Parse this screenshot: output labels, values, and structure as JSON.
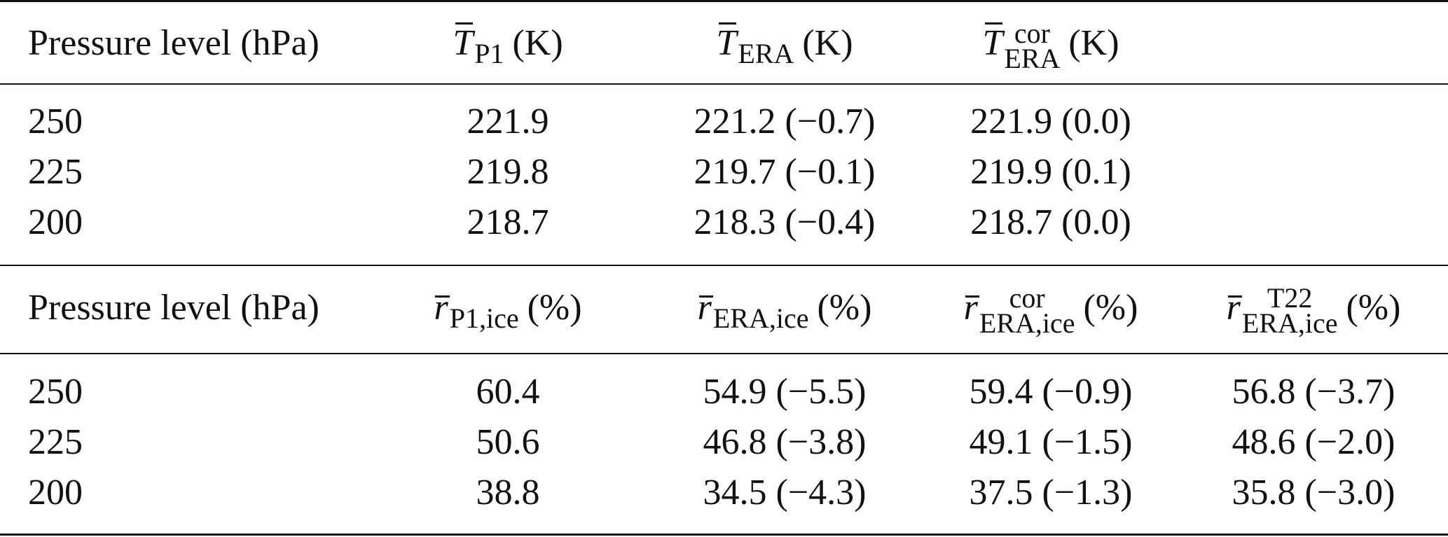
{
  "table": {
    "temperature": {
      "header": {
        "col0": "Pressure level (hPa)",
        "col1": {
          "symbol": "T",
          "sub": "P1",
          "unit": "(K)"
        },
        "col2": {
          "symbol": "T",
          "sub": "ERA",
          "unit": "(K)"
        },
        "col3": {
          "symbol": "T",
          "sup": "cor",
          "sub": "ERA",
          "unit": "(K)"
        }
      },
      "rows": [
        {
          "level": "250",
          "p1": "221.9",
          "era": "221.2 (−0.7)",
          "era_cor": "221.9 (0.0)"
        },
        {
          "level": "225",
          "p1": "219.8",
          "era": "219.7 (−0.1)",
          "era_cor": "219.9 (0.1)"
        },
        {
          "level": "200",
          "p1": "218.7",
          "era": "218.3 (−0.4)",
          "era_cor": "218.7 (0.0)"
        }
      ]
    },
    "humidity": {
      "header": {
        "col0": "Pressure level (hPa)",
        "col1": {
          "symbol": "r",
          "sub": "P1,ice",
          "unit": "(%)"
        },
        "col2": {
          "symbol": "r",
          "sub": "ERA,ice",
          "unit": "(%)"
        },
        "col3": {
          "symbol": "r",
          "sup": "cor",
          "sub": "ERA,ice",
          "unit": "(%)"
        },
        "col4": {
          "symbol": "r",
          "sup": "T22",
          "sub": "ERA,ice",
          "unit": "(%)"
        }
      },
      "rows": [
        {
          "level": "250",
          "p1": "60.4",
          "era": "54.9 (−5.5)",
          "era_cor": "59.4 (−0.9)",
          "era_t22": "56.8 (−3.7)"
        },
        {
          "level": "225",
          "p1": "50.6",
          "era": "46.8 (−3.8)",
          "era_cor": "49.1 (−1.5)",
          "era_t22": "48.6 (−2.0)"
        },
        {
          "level": "200",
          "p1": "38.8",
          "era": "34.5 (−4.3)",
          "era_cor": "37.5 (−1.3)",
          "era_t22": "35.8 (−3.0)"
        }
      ]
    }
  }
}
